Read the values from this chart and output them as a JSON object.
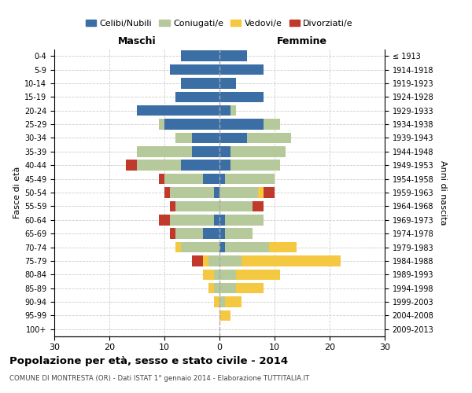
{
  "age_groups": [
    "0-4",
    "5-9",
    "10-14",
    "15-19",
    "20-24",
    "25-29",
    "30-34",
    "35-39",
    "40-44",
    "45-49",
    "50-54",
    "55-59",
    "60-64",
    "65-69",
    "70-74",
    "75-79",
    "80-84",
    "85-89",
    "90-94",
    "95-99",
    "100+"
  ],
  "birth_years": [
    "2009-2013",
    "2004-2008",
    "1999-2003",
    "1994-1998",
    "1989-1993",
    "1984-1988",
    "1979-1983",
    "1974-1978",
    "1969-1973",
    "1964-1968",
    "1959-1963",
    "1954-1958",
    "1949-1953",
    "1944-1948",
    "1939-1943",
    "1934-1938",
    "1929-1933",
    "1924-1928",
    "1919-1923",
    "1914-1918",
    "≤ 1913"
  ],
  "maschi": {
    "celibi": [
      7,
      9,
      7,
      8,
      15,
      10,
      5,
      5,
      7,
      3,
      1,
      0,
      1,
      3,
      0,
      0,
      0,
      0,
      0,
      0,
      0
    ],
    "coniugati": [
      0,
      0,
      0,
      0,
      0,
      1,
      3,
      10,
      8,
      7,
      8,
      8,
      8,
      5,
      7,
      2,
      1,
      1,
      0,
      0,
      0
    ],
    "vedovi": [
      0,
      0,
      0,
      0,
      0,
      0,
      0,
      0,
      0,
      0,
      0,
      0,
      0,
      0,
      1,
      1,
      2,
      1,
      1,
      0,
      0
    ],
    "divorziati": [
      0,
      0,
      0,
      0,
      0,
      0,
      0,
      0,
      2,
      1,
      1,
      1,
      2,
      1,
      0,
      2,
      0,
      0,
      0,
      0,
      0
    ]
  },
  "femmine": {
    "nubili": [
      5,
      8,
      3,
      8,
      2,
      8,
      5,
      2,
      2,
      1,
      0,
      0,
      1,
      1,
      1,
      0,
      0,
      0,
      0,
      0,
      0
    ],
    "coniugate": [
      0,
      0,
      0,
      0,
      1,
      3,
      8,
      10,
      9,
      9,
      7,
      6,
      7,
      5,
      8,
      4,
      3,
      3,
      1,
      0,
      0
    ],
    "vedove": [
      0,
      0,
      0,
      0,
      0,
      0,
      0,
      0,
      0,
      0,
      1,
      0,
      0,
      0,
      5,
      18,
      8,
      5,
      3,
      2,
      0
    ],
    "divorziate": [
      0,
      0,
      0,
      0,
      0,
      0,
      0,
      0,
      0,
      0,
      2,
      2,
      0,
      0,
      0,
      0,
      0,
      0,
      0,
      0,
      0
    ]
  },
  "colors": {
    "celibi_nubili": "#3a6ea5",
    "coniugati": "#b5c99a",
    "vedovi": "#f5c842",
    "divorziati": "#c0392b"
  },
  "xlim": 30,
  "title": "Popolazione per età, sesso e stato civile - 2014",
  "subtitle": "COMUNE DI MONTRESTA (OR) - Dati ISTAT 1° gennaio 2014 - Elaborazione TUTTITALIA.IT",
  "ylabel_left": "Fasce di età",
  "ylabel_right": "Anni di nascita",
  "xlabel_left": "Maschi",
  "xlabel_right": "Femmine"
}
